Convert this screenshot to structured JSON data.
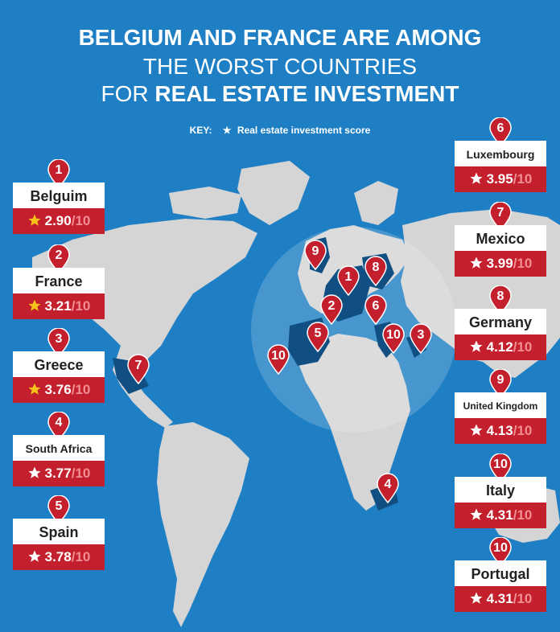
{
  "title": {
    "line1": "BELGIUM AND FRANCE ARE AMONG",
    "line2": "THE WORST COUNTRIES",
    "line3_prefix": "FOR",
    "line3_bold": "REAL ESTATE INVESTMENT"
  },
  "key": {
    "label": "KEY:",
    "description": "Real estate investment score"
  },
  "colors": {
    "background": "#1f7fc4",
    "land": "#d5d5d5",
    "highlight": "#114f82",
    "pin": "#c41f2c",
    "star_gold": "#f6c31a"
  },
  "rankings": [
    {
      "rank": "1",
      "country": "Belgium_label",
      "name": "Belguim",
      "score": "2.90",
      "denominator": "/10",
      "gold": true
    },
    {
      "rank": "2",
      "name": "France",
      "score": "3.21",
      "denominator": "/10",
      "gold": true
    },
    {
      "rank": "3",
      "name": "Greece",
      "score": "3.76",
      "denominator": "/10",
      "gold": true
    },
    {
      "rank": "4",
      "name": "South Africa",
      "score": "3.77",
      "denominator": "/10",
      "gold": false
    },
    {
      "rank": "5",
      "name": "Spain",
      "score": "3.78",
      "denominator": "/10",
      "gold": false
    },
    {
      "rank": "6",
      "name": "Luxembourg",
      "score": "3.95",
      "denominator": "/10",
      "gold": false
    },
    {
      "rank": "7",
      "name": "Mexico",
      "score": "3.99",
      "denominator": "/10",
      "gold": false
    },
    {
      "rank": "8",
      "name": "Germany",
      "score": "4.12",
      "denominator": "/10",
      "gold": false
    },
    {
      "rank": "9",
      "name": "United Kingdom",
      "score": "4.13",
      "denominator": "/10",
      "gold": false
    },
    {
      "rank": "10",
      "name": "Italy",
      "score": "4.31",
      "denominator": "/10",
      "gold": false
    },
    {
      "rank": "10",
      "name": "Portugal",
      "score": "4.31",
      "denominator": "/10",
      "gold": false
    }
  ],
  "map_pins": [
    "9",
    "1",
    "8",
    "2",
    "6",
    "5",
    "10",
    "10",
    "3",
    "7",
    "4"
  ]
}
